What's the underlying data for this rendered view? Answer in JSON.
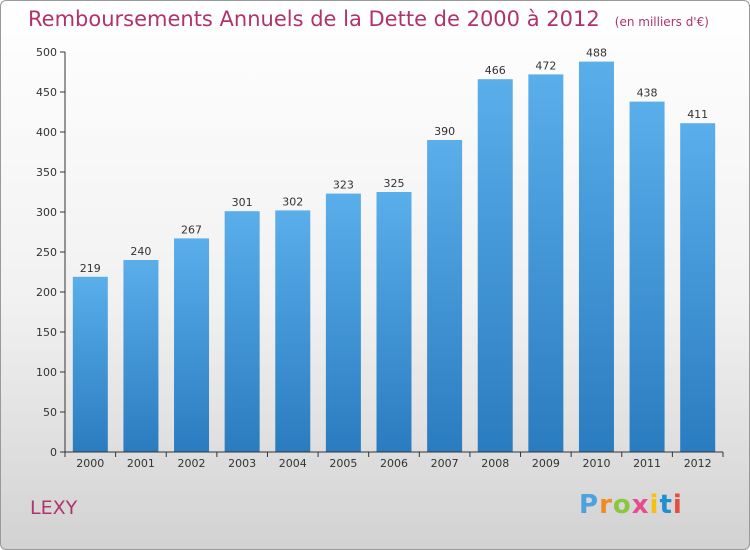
{
  "title": "Remboursements Annuels de la Dette de 2000 à 2012",
  "unit": "(en milliers d'€)",
  "place": "LEXY",
  "brand": {
    "text": "Proxiti",
    "colors": [
      "#4aa3df",
      "#f08a24",
      "#8cc63f",
      "#e84c8a",
      "#f4c20d",
      "#1f8fd1",
      "#e84c3d"
    ]
  },
  "colors": {
    "bar_top": "#5aaeea",
    "bar_bottom": "#2a7cc0",
    "axis": "#333333",
    "title": "#b0336e"
  },
  "chart_data": {
    "type": "bar",
    "title": "Remboursements Annuels de la Dette de 2000 à 2012",
    "xlabel": "",
    "ylabel": "",
    "categories": [
      "2000",
      "2001",
      "2002",
      "2003",
      "2004",
      "2005",
      "2006",
      "2007",
      "2008",
      "2009",
      "2010",
      "2011",
      "2012"
    ],
    "values": [
      219,
      240,
      267,
      301,
      302,
      323,
      325,
      390,
      466,
      472,
      488,
      438,
      411
    ],
    "ylim": [
      0,
      500
    ],
    "yticks": [
      0,
      50,
      100,
      150,
      200,
      250,
      300,
      350,
      400,
      450,
      500
    ],
    "grid": false,
    "data_labels": true
  }
}
